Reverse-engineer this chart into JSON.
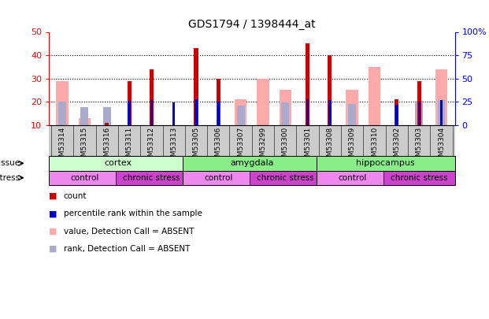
{
  "title": "GDS1794 / 1398444_at",
  "samples": [
    "GSM53314",
    "GSM53315",
    "GSM53316",
    "GSM53311",
    "GSM53312",
    "GSM53313",
    "GSM53305",
    "GSM53306",
    "GSM53307",
    "GSM53299",
    "GSM53300",
    "GSM53301",
    "GSM53308",
    "GSM53309",
    "GSM53310",
    "GSM53302",
    "GSM53303",
    "GSM53304"
  ],
  "red_bars": [
    0,
    0,
    11,
    29,
    34,
    0,
    43,
    30,
    0,
    0,
    0,
    45,
    40,
    0,
    0,
    21,
    29,
    0
  ],
  "blue_bars": [
    0,
    0,
    0,
    26,
    27,
    24,
    28,
    25,
    0,
    0,
    0,
    28,
    27,
    0,
    0,
    22,
    25,
    27
  ],
  "pink_bars": [
    29,
    13,
    0,
    0,
    0,
    0,
    0,
    0,
    21,
    30,
    25,
    0,
    0,
    25,
    35,
    0,
    0,
    34
  ],
  "lightblue_bars": [
    25,
    19,
    19,
    0,
    0,
    0,
    0,
    0,
    21,
    0,
    24,
    0,
    0,
    23,
    0,
    0,
    26,
    27
  ],
  "ylim_left": [
    10,
    50
  ],
  "ylim_right": [
    0,
    100
  ],
  "yticks_left": [
    10,
    20,
    30,
    40,
    50
  ],
  "yticks_right": [
    0,
    25,
    50,
    75,
    100
  ],
  "ytick_labels_right": [
    "0",
    "25",
    "50",
    "75",
    "100%"
  ],
  "tissue_groups": [
    {
      "label": "cortex",
      "start": 0,
      "end": 6,
      "color": "#ccffcc"
    },
    {
      "label": "amygdala",
      "start": 6,
      "end": 12,
      "color": "#88ee88"
    },
    {
      "label": "hippocampus",
      "start": 12,
      "end": 18,
      "color": "#88ee88"
    }
  ],
  "stress_groups": [
    {
      "label": "control",
      "start": 0,
      "end": 3,
      "color": "#ee88ee"
    },
    {
      "label": "chronic stress",
      "start": 3,
      "end": 6,
      "color": "#cc44cc"
    },
    {
      "label": "control",
      "start": 6,
      "end": 9,
      "color": "#ee88ee"
    },
    {
      "label": "chronic stress",
      "start": 9,
      "end": 12,
      "color": "#cc44cc"
    },
    {
      "label": "control",
      "start": 12,
      "end": 15,
      "color": "#ee88ee"
    },
    {
      "label": "chronic stress",
      "start": 15,
      "end": 18,
      "color": "#cc44cc"
    }
  ],
  "color_red": "#cc0000",
  "color_blue": "#0000cc",
  "color_pink": "#ffaaaa",
  "color_lightblue": "#aaaacc",
  "bg_color": "#ffffff",
  "label_bg": "#cccccc"
}
